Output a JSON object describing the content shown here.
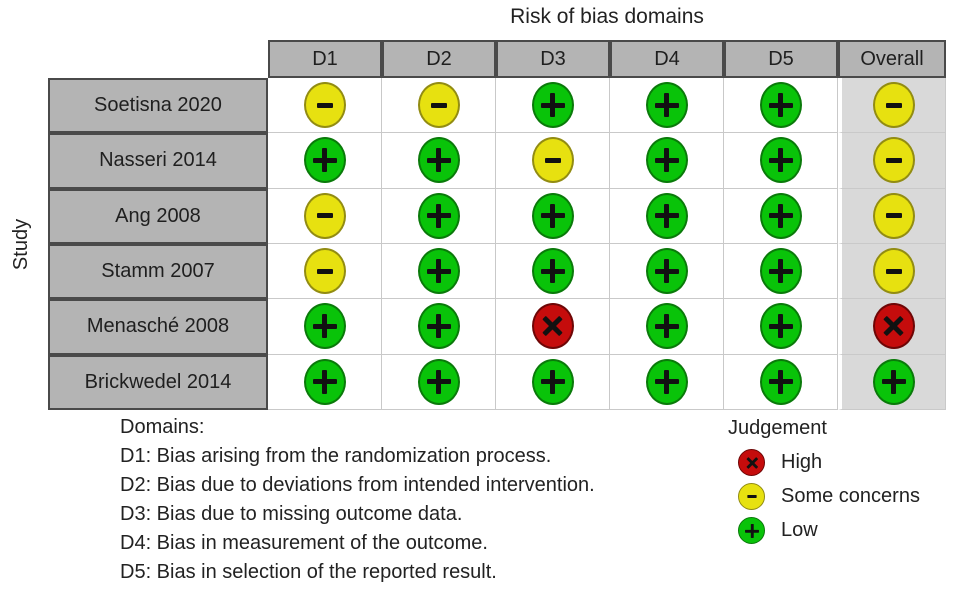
{
  "chart_data": {
    "type": "heatmap",
    "title": "Risk of bias domains",
    "ylabel": "Study",
    "x_categories": [
      "D1",
      "D2",
      "D3",
      "D4",
      "D5",
      "Overall"
    ],
    "y_categories": [
      "Soetisna 2020",
      "Nasseri 2014",
      "Ang 2008",
      "Stamm 2007",
      "Menasché 2008",
      "Brickwedel 2014"
    ],
    "values": [
      [
        "some_concerns",
        "some_concerns",
        "low",
        "low",
        "low",
        "some_concerns"
      ],
      [
        "low",
        "low",
        "some_concerns",
        "low",
        "low",
        "some_concerns"
      ],
      [
        "some_concerns",
        "low",
        "low",
        "low",
        "low",
        "some_concerns"
      ],
      [
        "some_concerns",
        "low",
        "low",
        "low",
        "low",
        "some_concerns"
      ],
      [
        "low",
        "low",
        "high",
        "low",
        "low",
        "high"
      ],
      [
        "low",
        "low",
        "low",
        "low",
        "low",
        "low"
      ]
    ],
    "judgement_styles": {
      "high": {
        "label": "High",
        "symbol": "x",
        "fill": "#C50C0C",
        "stroke": "#6E0606"
      },
      "some_concerns": {
        "label": "Some concerns",
        "symbol": "minus",
        "fill": "#E7E110",
        "stroke": "#928C12"
      },
      "low": {
        "label": "Low",
        "symbol": "plus",
        "fill": "#09C309",
        "stroke": "#0A7A0A"
      }
    },
    "legend": {
      "heading": "Judgement",
      "position": "bottom-right",
      "items": [
        {
          "judgement": "high"
        },
        {
          "judgement": "some_concerns"
        },
        {
          "judgement": "low"
        }
      ]
    },
    "notes": {
      "heading": "Domains:",
      "lines": [
        "D1: Bias arising from the randomization process.",
        "D2: Bias due to deviations from intended intervention.",
        "D3: Bias due to missing outcome data.",
        "D4: Bias in measurement of the outcome.",
        "D5: Bias in selection of the reported result."
      ]
    }
  },
  "colors": {
    "header_bg": "#B4B4B4",
    "overall_bg": "#D9D9D9",
    "grid_line": "#C9C9C9",
    "table_border": "#4A4A4A",
    "text": "#262626"
  }
}
